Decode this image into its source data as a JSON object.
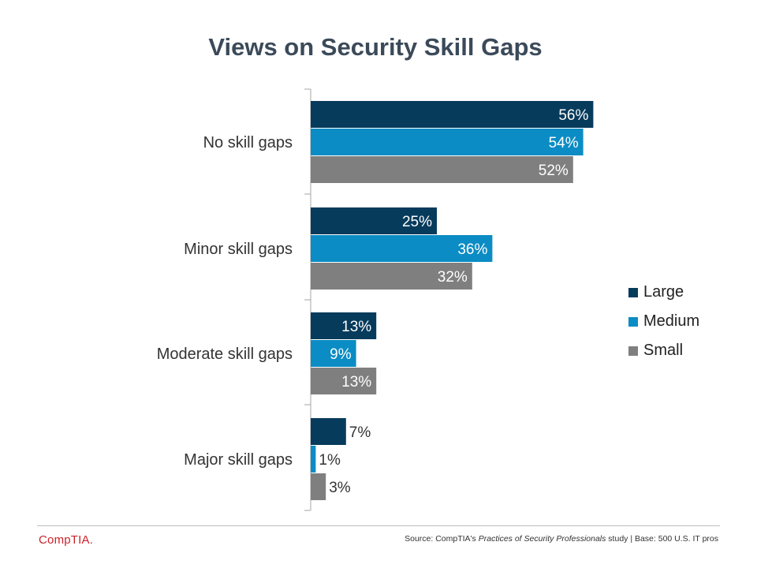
{
  "chart_data": {
    "type": "bar",
    "orientation": "horizontal",
    "title": "Views on Security Skill Gaps",
    "categories": [
      "No skill gaps",
      "Minor skill gaps",
      "Moderate skill gaps",
      "Major skill gaps"
    ],
    "series": [
      {
        "name": "Large",
        "color": "#073b5c",
        "values": [
          56,
          25,
          13,
          7
        ],
        "labels": [
          "56%",
          "25%",
          "13%",
          "7%"
        ]
      },
      {
        "name": "Medium",
        "color": "#0b8cc4",
        "values": [
          54,
          36,
          9,
          1
        ],
        "labels": [
          "54%",
          "36%",
          "9%",
          "1%"
        ]
      },
      {
        "name": "Small",
        "color": "#7f7f7f",
        "values": [
          52,
          32,
          13,
          3
        ],
        "labels": [
          "52%",
          "32%",
          "13%",
          "3%"
        ]
      }
    ],
    "xlim": [
      0,
      60
    ],
    "grid": false,
    "legend_position": "right"
  },
  "footer": {
    "logo_text": "CompTIA.",
    "source_prefix": "Source: CompTIA's ",
    "source_study": "Practices of Security Professionals",
    "source_suffix": " study | Base: 500 U.S. IT pros"
  }
}
